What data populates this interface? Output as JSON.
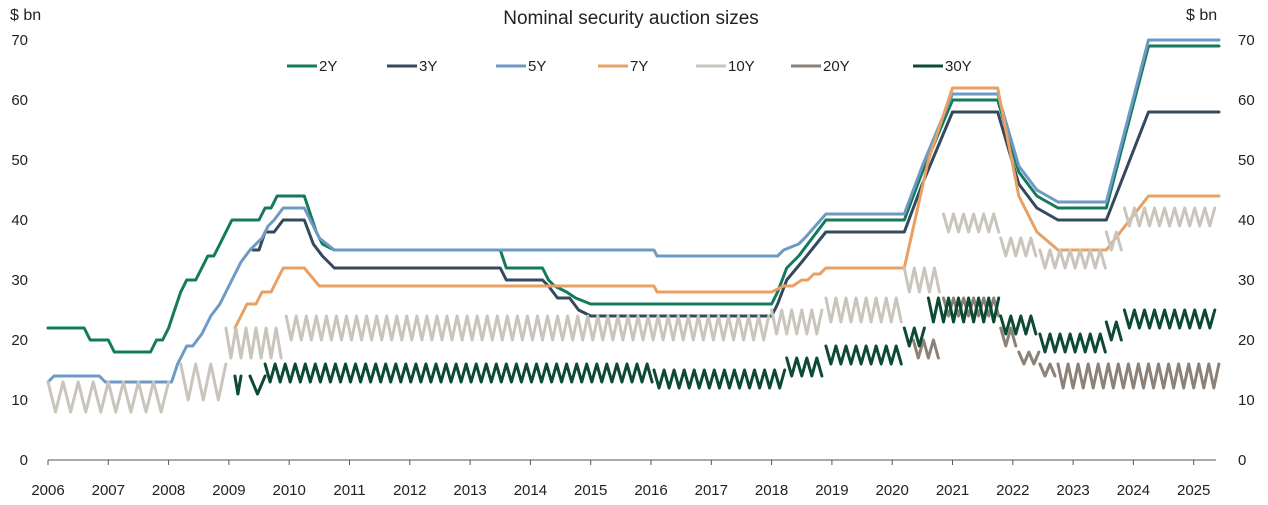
{
  "chart_data": {
    "type": "line",
    "title": "Nominal security auction sizes",
    "ylabel_left": "$ bn",
    "ylabel_right": "$ bn",
    "xlabel": "",
    "xlim": [
      2006.0,
      2025.42
    ],
    "ylim": [
      0,
      70
    ],
    "yticks": [
      0,
      10,
      20,
      30,
      40,
      50,
      60,
      70
    ],
    "xticks": [
      "2006",
      "2007",
      "2008",
      "2009",
      "2010",
      "2011",
      "2012",
      "2013",
      "2014",
      "2015",
      "2016",
      "2017",
      "2018",
      "2019",
      "2020",
      "2021",
      "2022",
      "2023",
      "2024",
      "2025"
    ],
    "grid": false,
    "legend_position": "top",
    "series": [
      {
        "name": "2Y",
        "color": "#137a5e",
        "kind": "line",
        "points": [
          [
            2006.0,
            22
          ],
          [
            2006.6,
            22
          ],
          [
            2006.7,
            20
          ],
          [
            2007.0,
            20
          ],
          [
            2007.1,
            18
          ],
          [
            2007.7,
            18
          ],
          [
            2007.8,
            20
          ],
          [
            2007.9,
            20
          ],
          [
            2008.0,
            22
          ],
          [
            2008.1,
            25
          ],
          [
            2008.2,
            28
          ],
          [
            2008.3,
            30
          ],
          [
            2008.45,
            30
          ],
          [
            2008.55,
            32
          ],
          [
            2008.65,
            34
          ],
          [
            2008.75,
            34
          ],
          [
            2008.85,
            36
          ],
          [
            2008.95,
            38
          ],
          [
            2009.05,
            40
          ],
          [
            2009.5,
            40
          ],
          [
            2009.6,
            42
          ],
          [
            2009.7,
            42
          ],
          [
            2009.8,
            44
          ],
          [
            2010.25,
            44
          ],
          [
            2010.45,
            38
          ],
          [
            2010.55,
            36
          ],
          [
            2010.75,
            35
          ],
          [
            2013.5,
            35
          ],
          [
            2013.6,
            32
          ],
          [
            2014.2,
            32
          ],
          [
            2014.3,
            30
          ],
          [
            2014.4,
            29
          ],
          [
            2014.6,
            28
          ],
          [
            2014.75,
            27
          ],
          [
            2015.0,
            26
          ],
          [
            2018.0,
            26
          ],
          [
            2018.1,
            28
          ],
          [
            2018.25,
            32
          ],
          [
            2018.45,
            34
          ],
          [
            2018.9,
            40
          ],
          [
            2020.2,
            40
          ],
          [
            2020.5,
            48
          ],
          [
            2021.0,
            60
          ],
          [
            2021.75,
            60
          ],
          [
            2022.1,
            48
          ],
          [
            2022.4,
            44
          ],
          [
            2022.75,
            42
          ],
          [
            2023.55,
            42
          ],
          [
            2024.25,
            69
          ],
          [
            2025.42,
            69
          ]
        ]
      },
      {
        "name": "3Y",
        "color": "#34495e",
        "kind": "line",
        "points": [
          [
            2009.4,
            35
          ],
          [
            2009.5,
            35
          ],
          [
            2009.6,
            38
          ],
          [
            2009.75,
            38
          ],
          [
            2009.9,
            40
          ],
          [
            2010.25,
            40
          ],
          [
            2010.4,
            36
          ],
          [
            2010.55,
            34
          ],
          [
            2010.75,
            32
          ],
          [
            2013.5,
            32
          ],
          [
            2013.6,
            30
          ],
          [
            2014.2,
            30
          ],
          [
            2014.3,
            29
          ],
          [
            2014.45,
            27
          ],
          [
            2014.65,
            27
          ],
          [
            2014.8,
            25
          ],
          [
            2015.0,
            24
          ],
          [
            2018.0,
            24
          ],
          [
            2018.1,
            26
          ],
          [
            2018.25,
            30
          ],
          [
            2018.5,
            33
          ],
          [
            2018.9,
            38
          ],
          [
            2020.2,
            38
          ],
          [
            2020.5,
            46
          ],
          [
            2021.0,
            58
          ],
          [
            2021.75,
            58
          ],
          [
            2022.1,
            46
          ],
          [
            2022.4,
            42
          ],
          [
            2022.75,
            40
          ],
          [
            2023.55,
            40
          ],
          [
            2024.25,
            58
          ],
          [
            2025.42,
            58
          ]
        ]
      },
      {
        "name": "5Y",
        "color": "#6d9ac4",
        "kind": "line",
        "points": [
          [
            2006.0,
            13
          ],
          [
            2006.1,
            14
          ],
          [
            2006.85,
            14
          ],
          [
            2006.95,
            13
          ],
          [
            2007.95,
            13
          ],
          [
            2008.05,
            13
          ],
          [
            2008.15,
            16
          ],
          [
            2008.3,
            19
          ],
          [
            2008.4,
            19
          ],
          [
            2008.55,
            21
          ],
          [
            2008.7,
            24
          ],
          [
            2008.85,
            26
          ],
          [
            2008.95,
            28
          ],
          [
            2009.05,
            30
          ],
          [
            2009.2,
            33
          ],
          [
            2009.35,
            35
          ],
          [
            2009.55,
            37
          ],
          [
            2009.65,
            39
          ],
          [
            2009.75,
            40
          ],
          [
            2009.9,
            42
          ],
          [
            2010.25,
            42
          ],
          [
            2010.5,
            37
          ],
          [
            2010.75,
            35
          ],
          [
            2016.05,
            35
          ],
          [
            2016.1,
            34
          ],
          [
            2018.1,
            34
          ],
          [
            2018.2,
            35
          ],
          [
            2018.45,
            36
          ],
          [
            2018.55,
            37
          ],
          [
            2018.9,
            41
          ],
          [
            2020.2,
            41
          ],
          [
            2020.5,
            49
          ],
          [
            2021.0,
            61
          ],
          [
            2021.75,
            61
          ],
          [
            2022.1,
            49
          ],
          [
            2022.4,
            45
          ],
          [
            2022.75,
            43
          ],
          [
            2023.55,
            43
          ],
          [
            2024.25,
            70
          ],
          [
            2025.42,
            70
          ]
        ]
      },
      {
        "name": "7Y",
        "color": "#e8a063",
        "kind": "line",
        "points": [
          [
            2009.1,
            22
          ],
          [
            2009.2,
            24
          ],
          [
            2009.3,
            26
          ],
          [
            2009.45,
            26
          ],
          [
            2009.55,
            28
          ],
          [
            2009.7,
            28
          ],
          [
            2009.8,
            30
          ],
          [
            2009.9,
            32
          ],
          [
            2010.25,
            32
          ],
          [
            2010.5,
            29
          ],
          [
            2014.75,
            29
          ],
          [
            2016.05,
            29
          ],
          [
            2016.1,
            28
          ],
          [
            2018.0,
            28
          ],
          [
            2018.2,
            29
          ],
          [
            2018.35,
            29
          ],
          [
            2018.5,
            30
          ],
          [
            2018.6,
            30
          ],
          [
            2018.7,
            31
          ],
          [
            2018.8,
            31
          ],
          [
            2018.9,
            32
          ],
          [
            2020.2,
            32
          ],
          [
            2020.6,
            50
          ],
          [
            2021.0,
            62
          ],
          [
            2021.75,
            62
          ],
          [
            2022.1,
            44
          ],
          [
            2022.4,
            38
          ],
          [
            2022.75,
            35
          ],
          [
            2023.55,
            35
          ],
          [
            2024.25,
            44
          ],
          [
            2025.42,
            44
          ]
        ]
      },
      {
        "name": "10Y",
        "color": "#c9c5bc",
        "kind": "sawtooth",
        "segments": [
          {
            "from": 2006.0,
            "to": 2008.0,
            "high": 13,
            "low": 8,
            "step": 0.25
          },
          {
            "from": 2008.2,
            "to": 2008.95,
            "high": 16,
            "low": 10,
            "step": 0.25
          },
          {
            "from": 2008.95,
            "to": 2009.95,
            "high": 22,
            "low": 17,
            "step": 0.1667
          },
          {
            "from": 2009.95,
            "to": 2018.0,
            "high": 24,
            "low": 20,
            "step": 0.1667
          },
          {
            "from": 2018.0,
            "to": 2018.9,
            "high": 25,
            "low": 21,
            "step": 0.1667
          },
          {
            "from": 2018.9,
            "to": 2020.2,
            "high": 27,
            "low": 23,
            "step": 0.1667
          },
          {
            "from": 2020.2,
            "to": 2020.85,
            "high": 32,
            "low": 28,
            "step": 0.1667
          },
          {
            "from": 2020.85,
            "to": 2021.8,
            "high": 41,
            "low": 38,
            "step": 0.1667
          },
          {
            "from": 2021.8,
            "to": 2022.45,
            "high": 37,
            "low": 34,
            "step": 0.1667
          },
          {
            "from": 2022.45,
            "to": 2023.55,
            "high": 35,
            "low": 32,
            "step": 0.1667
          },
          {
            "from": 2023.55,
            "to": 2023.85,
            "high": 38,
            "low": 35,
            "step": 0.1667
          },
          {
            "from": 2023.85,
            "to": 2025.42,
            "high": 42,
            "low": 39,
            "step": 0.1667
          }
        ]
      },
      {
        "name": "20Y",
        "color": "#8c8177",
        "kind": "sawtooth",
        "segments": [
          {
            "from": 2020.35,
            "to": 2020.85,
            "high": 20,
            "low": 17,
            "step": 0.1667
          },
          {
            "from": 2020.85,
            "to": 2021.8,
            "high": 27,
            "low": 24,
            "step": 0.1667
          },
          {
            "from": 2021.8,
            "to": 2022.1,
            "high": 22,
            "low": 19,
            "step": 0.1667
          },
          {
            "from": 2022.1,
            "to": 2022.45,
            "high": 18,
            "low": 16,
            "step": 0.1667
          },
          {
            "from": 2022.45,
            "to": 2022.75,
            "high": 16,
            "low": 14,
            "step": 0.1667
          },
          {
            "from": 2022.75,
            "to": 2025.42,
            "high": 16,
            "low": 12,
            "step": 0.1667
          }
        ]
      },
      {
        "name": "30Y",
        "color": "#0d4a34",
        "kind": "sawtooth",
        "segments": [
          {
            "from": 2009.1,
            "to": 2009.2,
            "high": 14,
            "low": 11,
            "step": 0.1
          },
          {
            "from": 2009.35,
            "to": 2009.6,
            "high": 14,
            "low": 11,
            "step": 0.25
          },
          {
            "from": 2009.6,
            "to": 2016.05,
            "high": 16,
            "low": 13,
            "step": 0.1667
          },
          {
            "from": 2016.05,
            "to": 2018.25,
            "high": 15,
            "low": 12,
            "step": 0.1667
          },
          {
            "from": 2018.25,
            "to": 2018.9,
            "high": 17,
            "low": 14,
            "step": 0.1667
          },
          {
            "from": 2018.9,
            "to": 2020.2,
            "high": 19,
            "low": 16,
            "step": 0.1667
          },
          {
            "from": 2020.2,
            "to": 2020.6,
            "high": 22,
            "low": 19,
            "step": 0.1667
          },
          {
            "from": 2020.6,
            "to": 2021.8,
            "high": 27,
            "low": 23,
            "step": 0.1667
          },
          {
            "from": 2021.8,
            "to": 2022.45,
            "high": 24,
            "low": 21,
            "step": 0.1667
          },
          {
            "from": 2022.45,
            "to": 2023.55,
            "high": 21,
            "low": 18,
            "step": 0.1667
          },
          {
            "from": 2023.55,
            "to": 2023.85,
            "high": 23,
            "low": 20,
            "step": 0.1667
          },
          {
            "from": 2023.85,
            "to": 2025.42,
            "high": 25,
            "low": 22,
            "step": 0.1667
          }
        ]
      }
    ]
  }
}
